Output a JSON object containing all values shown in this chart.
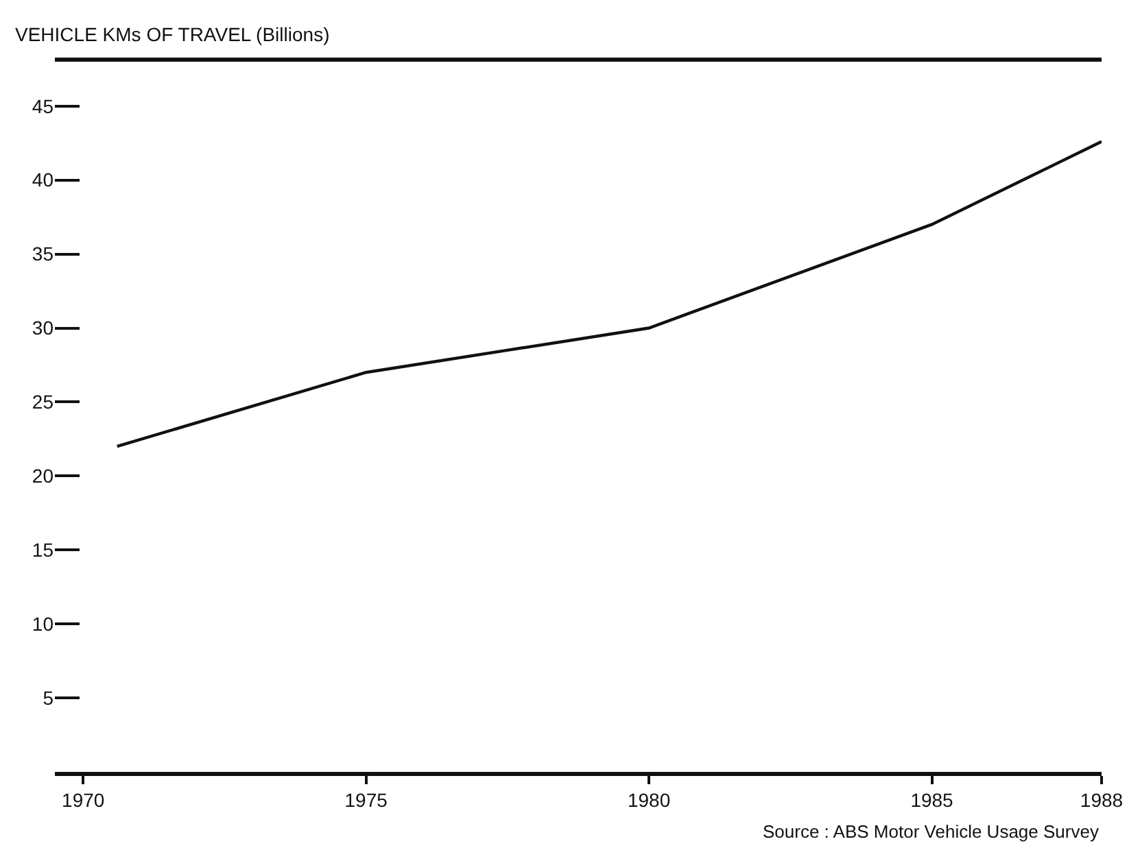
{
  "chart_data": {
    "type": "line",
    "ylabel": "VEHICLE KMs OF TRAVEL (Billions)",
    "x": [
      1970.6,
      1975,
      1980,
      1985,
      1988
    ],
    "series": [
      {
        "color": "#111111",
        "values": [
          22,
          27,
          30,
          37,
          42.6
        ]
      }
    ],
    "xlim": [
      1969.5,
      1988
    ],
    "xticks": [
      1970,
      1975,
      1980,
      1985,
      1988
    ],
    "ylim": [
      0,
      48
    ],
    "yticks": [
      5,
      10,
      15,
      20,
      25,
      30,
      35,
      40,
      45
    ],
    "marker": "none",
    "line_style": "solid",
    "annotations": [
      "Source : ABS Motor Vehicle Usage Survey"
    ]
  }
}
